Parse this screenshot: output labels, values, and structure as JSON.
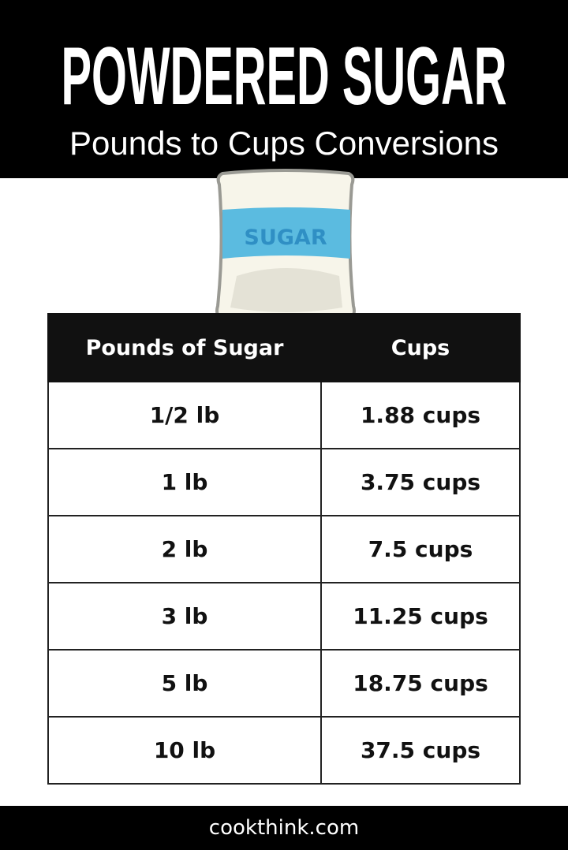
{
  "header": {
    "title": "POWDERED SUGAR",
    "subtitle": "Pounds to Cups Conversions"
  },
  "illustration": {
    "label": "SUGAR",
    "icon": "sugar-bag-icon",
    "band_color": "#5bbbe0"
  },
  "table": {
    "headers": [
      "Pounds of Sugar",
      "Cups"
    ],
    "rows": [
      [
        "1/2 lb",
        "1.88 cups"
      ],
      [
        "1 lb",
        "3.75 cups"
      ],
      [
        "2 lb",
        "7.5 cups"
      ],
      [
        "3 lb",
        "11.25 cups"
      ],
      [
        "5 lb",
        "18.75 cups"
      ],
      [
        "10 lb",
        "37.5 cups"
      ]
    ]
  },
  "footer": {
    "site": "cookthink.com"
  }
}
